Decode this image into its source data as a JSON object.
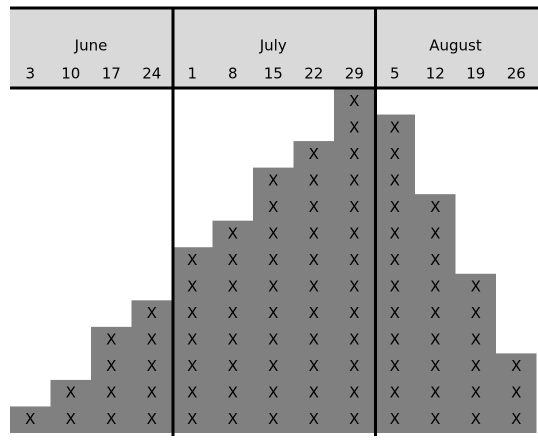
{
  "months": [
    {
      "name": "June",
      "weeks": [
        "3",
        "10",
        "17",
        "24"
      ],
      "counts": [
        1,
        2,
        4,
        5
      ]
    },
    {
      "name": "July",
      "weeks": [
        "1",
        "8",
        "15",
        "22",
        "29"
      ],
      "counts": [
        7,
        8,
        10,
        11,
        13
      ]
    },
    {
      "name": "August",
      "weeks": [
        "5",
        "12",
        "19",
        "26"
      ],
      "counts": [
        12,
        9,
        6,
        3
      ]
    }
  ],
  "mark": "X"
}
